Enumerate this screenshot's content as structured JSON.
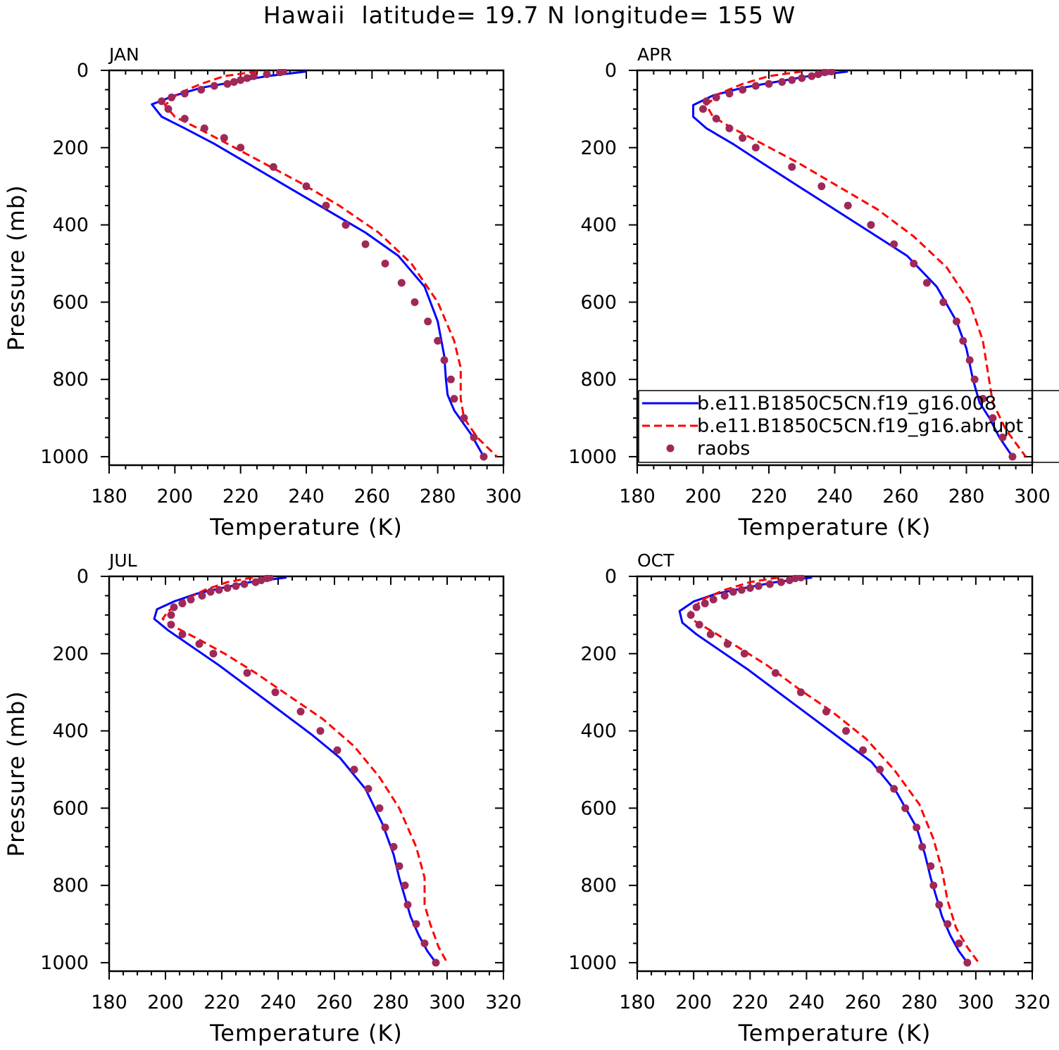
{
  "title": "Hawaii  latitude= 19.7 N longitude= 155 W",
  "colors": {
    "model_008": "#0000ff",
    "model_abrupt": "#ff0000",
    "raobs": "#a02858"
  },
  "legend": {
    "placement": "inside JAN-right panel (APR), lower-right",
    "entries": [
      "b.e11.B1850C5CN.f19_g16.008",
      "b.e11.B1850C5CN.f19_g16.abrupt",
      "raobs"
    ]
  },
  "chart_data": [
    {
      "type": "line",
      "panel": "JAN",
      "xlabel": "Temperature (K)",
      "ylabel": "Pressure (mb)",
      "xlim": [
        180,
        300
      ],
      "ylim": [
        1000,
        0
      ],
      "xticks": [
        180,
        200,
        220,
        240,
        260,
        280,
        300
      ],
      "yticks": [
        0,
        200,
        400,
        600,
        800,
        1000
      ],
      "series": [
        {
          "name": "b.e11.B1850C5CN.f19_g16.008",
          "style": "solid",
          "x": [
            240,
            228,
            218,
            208,
            200,
            193,
            196,
            203,
            212,
            222,
            234,
            246,
            258,
            268,
            276,
            280,
            282,
            282.5,
            283,
            285,
            290,
            294
          ],
          "y": [
            3,
            15,
            30,
            45,
            65,
            88,
            120,
            150,
            190,
            240,
            300,
            360,
            420,
            480,
            560,
            650,
            740,
            800,
            840,
            880,
            940,
            1000
          ]
        },
        {
          "name": "b.e11.B1850C5CN.f19_g16.abrupt",
          "style": "dashed",
          "x": [
            225,
            215,
            208,
            201,
            197,
            200,
            207,
            216,
            227,
            238,
            250,
            262,
            272,
            280,
            285,
            287,
            287,
            288,
            292,
            298
          ],
          "y": [
            3,
            15,
            35,
            60,
            90,
            120,
            150,
            190,
            240,
            290,
            350,
            420,
            500,
            600,
            700,
            770,
            850,
            900,
            950,
            1000
          ]
        },
        {
          "name": "raobs",
          "style": "points",
          "x": [
            233,
            232,
            228,
            224,
            222,
            220,
            218,
            216,
            212,
            208,
            203,
            199,
            196,
            198,
            203,
            209,
            215,
            220,
            230,
            240,
            246,
            252,
            258,
            264,
            269,
            273,
            277,
            280,
            282,
            284,
            285,
            288,
            291,
            294
          ],
          "y": [
            3,
            5,
            10,
            15,
            20,
            25,
            30,
            35,
            40,
            50,
            60,
            70,
            80,
            100,
            125,
            150,
            175,
            200,
            250,
            300,
            350,
            400,
            450,
            500,
            550,
            600,
            650,
            700,
            750,
            800,
            850,
            900,
            950,
            1000
          ]
        }
      ]
    },
    {
      "type": "line",
      "panel": "APR",
      "xlabel": "Temperature (K)",
      "ylabel": "",
      "xlim": [
        180,
        300
      ],
      "ylim": [
        1000,
        0
      ],
      "xticks": [
        180,
        200,
        220,
        240,
        260,
        280,
        300
      ],
      "yticks": [
        0,
        200,
        400,
        600,
        800,
        1000
      ],
      "series": [
        {
          "name": "b.e11.B1850C5CN.f19_g16.008",
          "style": "solid",
          "x": [
            244,
            232,
            222,
            212,
            203,
            197,
            197,
            201,
            209,
            218,
            229,
            240,
            251,
            262,
            271,
            277,
            280,
            282,
            284,
            287,
            290,
            294
          ],
          "y": [
            3,
            15,
            30,
            45,
            65,
            90,
            120,
            150,
            190,
            240,
            300,
            360,
            420,
            480,
            560,
            650,
            720,
            800,
            860,
            900,
            950,
            1000
          ]
        },
        {
          "name": "b.e11.B1850C5CN.f19_g16.abrupt",
          "style": "dashed",
          "x": [
            230,
            220,
            212,
            205,
            201,
            203,
            209,
            218,
            229,
            241,
            253,
            264,
            274,
            281,
            285,
            286.5,
            288,
            292,
            298
          ],
          "y": [
            3,
            15,
            35,
            60,
            90,
            120,
            150,
            190,
            240,
            300,
            360,
            430,
            510,
            600,
            700,
            780,
            860,
            930,
            1000
          ]
        },
        {
          "name": "raobs",
          "style": "points",
          "x": [
            239,
            237,
            235,
            233,
            230,
            227,
            224,
            220,
            216,
            212,
            208,
            204,
            201,
            200,
            204,
            208,
            212,
            216,
            227,
            236,
            244,
            251,
            258,
            264,
            268,
            273,
            277,
            279,
            281,
            282.5,
            285,
            288,
            291,
            294
          ],
          "y": [
            3,
            5,
            10,
            15,
            20,
            25,
            30,
            35,
            40,
            50,
            60,
            70,
            80,
            100,
            125,
            150,
            175,
            200,
            250,
            300,
            350,
            400,
            450,
            500,
            550,
            600,
            650,
            700,
            750,
            800,
            850,
            900,
            950,
            1000
          ]
        }
      ]
    },
    {
      "type": "line",
      "panel": "JUL",
      "xlabel": "Temperature (K)",
      "ylabel": "Pressure (mb)",
      "xlim": [
        180,
        320
      ],
      "ylim": [
        1000,
        0
      ],
      "xticks": [
        180,
        200,
        220,
        240,
        260,
        280,
        300,
        320
      ],
      "yticks": [
        0,
        200,
        400,
        600,
        800,
        1000
      ],
      "series": [
        {
          "name": "b.e11.B1850C5CN.f19_g16.008",
          "style": "solid",
          "x": [
            243,
            230,
            220,
            211,
            203,
            197,
            196,
            201,
            209,
            219,
            230,
            241,
            252,
            262,
            271,
            277,
            281,
            283,
            285,
            287,
            290,
            293,
            296
          ],
          "y": [
            3,
            15,
            30,
            45,
            65,
            85,
            110,
            140,
            180,
            230,
            290,
            350,
            410,
            470,
            550,
            640,
            720,
            780,
            830,
            880,
            930,
            970,
            1000
          ]
        },
        {
          "name": "b.e11.B1850C5CN.f19_g16.abrupt",
          "style": "dashed",
          "x": [
            231,
            222,
            214,
            207,
            201,
            199,
            203,
            211,
            221,
            232,
            244,
            256,
            267,
            276,
            283,
            289,
            292,
            292,
            294,
            297,
            300
          ],
          "y": [
            3,
            15,
            35,
            60,
            90,
            110,
            130,
            160,
            200,
            250,
            310,
            370,
            440,
            520,
            600,
            700,
            780,
            850,
            900,
            960,
            1000
          ]
        },
        {
          "name": "raobs",
          "style": "points",
          "x": [
            237,
            236,
            234,
            232,
            228,
            225,
            222,
            219,
            216,
            213,
            209,
            206,
            203,
            202,
            202,
            206,
            212,
            217,
            229,
            239,
            248,
            255,
            261,
            267,
            272,
            276,
            278,
            281,
            283,
            285,
            286,
            289,
            292,
            296
          ],
          "y": [
            3,
            5,
            10,
            15,
            20,
            25,
            30,
            35,
            40,
            50,
            60,
            70,
            80,
            100,
            125,
            150,
            175,
            200,
            250,
            300,
            350,
            400,
            450,
            500,
            550,
            600,
            650,
            700,
            750,
            800,
            850,
            900,
            950,
            1000
          ]
        }
      ]
    },
    {
      "type": "line",
      "panel": "OCT",
      "xlabel": "Temperature (K)",
      "ylabel": "",
      "xlim": [
        180,
        320
      ],
      "ylim": [
        1000,
        0
      ],
      "xticks": [
        180,
        200,
        220,
        240,
        260,
        280,
        300,
        320
      ],
      "yticks": [
        0,
        200,
        400,
        600,
        800,
        1000
      ],
      "series": [
        {
          "name": "b.e11.B1850C5CN.f19_g16.008",
          "style": "solid",
          "x": [
            242,
            229,
            218,
            208,
            200,
            195,
            196,
            201,
            209,
            219,
            230,
            241,
            252,
            263,
            272,
            279,
            282,
            284,
            286,
            288,
            291,
            294,
            297
          ],
          "y": [
            3,
            15,
            30,
            45,
            65,
            90,
            120,
            150,
            190,
            240,
            300,
            360,
            420,
            480,
            560,
            650,
            720,
            780,
            830,
            880,
            930,
            970,
            1000
          ]
        },
        {
          "name": "b.e11.B1850C5CN.f19_g16.abrupt",
          "style": "dashed",
          "x": [
            230,
            220,
            211,
            203,
            199,
            199,
            206,
            215,
            226,
            237,
            249,
            261,
            271,
            280,
            285,
            288,
            290,
            293,
            297,
            301
          ],
          "y": [
            3,
            15,
            35,
            60,
            90,
            110,
            140,
            180,
            230,
            290,
            350,
            420,
            500,
            590,
            680,
            760,
            840,
            910,
            960,
            1000
          ]
        },
        {
          "name": "raobs",
          "style": "points",
          "x": [
            238,
            236,
            234,
            231,
            227,
            223,
            220,
            217,
            214,
            211,
            207,
            204,
            201,
            199,
            202,
            206,
            212,
            218,
            229,
            238,
            247,
            254,
            260,
            266,
            271,
            275,
            279,
            281,
            284,
            285,
            287,
            290,
            294,
            297
          ],
          "y": [
            3,
            5,
            10,
            15,
            20,
            25,
            30,
            35,
            40,
            50,
            60,
            70,
            80,
            100,
            125,
            150,
            175,
            200,
            250,
            300,
            350,
            400,
            450,
            500,
            550,
            600,
            650,
            700,
            750,
            800,
            850,
            900,
            950,
            1000
          ]
        }
      ]
    }
  ]
}
